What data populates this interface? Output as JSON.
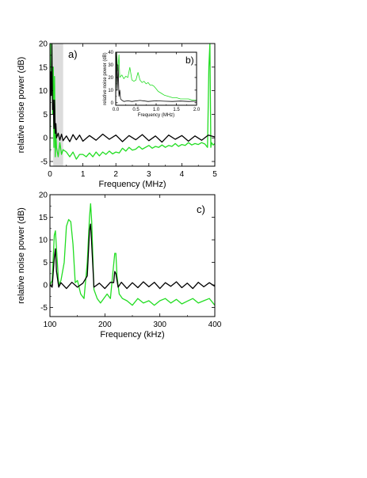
{
  "chart_data": [
    {
      "panel": "a)",
      "type": "line",
      "xlabel": "Frequency (MHz)",
      "ylabel": "relative noise power (dB)",
      "xlim": [
        0,
        5
      ],
      "ylim": [
        -6,
        20
      ],
      "xticks": [
        0,
        1,
        2,
        3,
        4,
        5
      ],
      "yticks": [
        -5,
        0,
        5,
        10,
        15,
        20
      ],
      "shaded_band": [
        0.1,
        0.4
      ],
      "grid": false,
      "series": [
        {
          "color": "#22dd22",
          "x": [
            0.0,
            0.02,
            0.04,
            0.06,
            0.08,
            0.1,
            0.12,
            0.14,
            0.16,
            0.18,
            0.2,
            0.25,
            0.3,
            0.35,
            0.4,
            0.5,
            0.6,
            0.7,
            0.8,
            0.9,
            1.0,
            1.1,
            1.2,
            1.3,
            1.4,
            1.5,
            1.6,
            1.7,
            1.8,
            1.9,
            2.0,
            2.1,
            2.2,
            2.3,
            2.4,
            2.5,
            2.6,
            2.7,
            2.8,
            2.9,
            3.0,
            3.1,
            3.2,
            3.3,
            3.4,
            3.5,
            3.6,
            3.7,
            3.8,
            3.9,
            4.0,
            4.1,
            4.2,
            4.3,
            4.4,
            4.5,
            4.6,
            4.7,
            4.78,
            4.82,
            4.85,
            4.88,
            4.9,
            4.95,
            5.0
          ],
          "y": [
            -3,
            20,
            20,
            20,
            5,
            15,
            -2,
            13,
            -4,
            1,
            -2,
            -4,
            -1,
            -3.5,
            -2.5,
            -3,
            -4,
            -3,
            -4.5,
            -3.5,
            -3.5,
            -4,
            -3.2,
            -4,
            -3,
            -3.8,
            -3,
            -3.5,
            -2.8,
            -3.4,
            -3,
            -3.2,
            -2.2,
            -2.8,
            -2,
            -2.6,
            -2.4,
            -1.8,
            -2.4,
            -2,
            -1.6,
            -2.2,
            -1.8,
            -2,
            -1.5,
            -2,
            -1.6,
            -1.8,
            -1.2,
            -1.8,
            -1.4,
            -1.6,
            -1,
            -1.5,
            -1.2,
            -1.4,
            -1,
            -1.3,
            -2,
            15,
            20,
            -2,
            -1,
            -1.5,
            -1.2
          ]
        },
        {
          "color": "#000000",
          "x": [
            0.0,
            0.02,
            0.04,
            0.06,
            0.08,
            0.1,
            0.12,
            0.14,
            0.16,
            0.18,
            0.2,
            0.25,
            0.3,
            0.35,
            0.4,
            0.5,
            0.6,
            0.7,
            0.8,
            0.9,
            1.0,
            1.2,
            1.4,
            1.6,
            1.8,
            2.0,
            2.2,
            2.4,
            2.6,
            2.8,
            3.0,
            3.2,
            3.4,
            3.6,
            3.8,
            4.0,
            4.2,
            4.4,
            4.6,
            4.8,
            5.0
          ],
          "y": [
            0,
            14,
            9,
            20,
            6,
            8,
            2,
            8,
            1,
            3,
            0,
            1,
            -0.5,
            0.8,
            -0.6,
            0.4,
            -0.8,
            0.7,
            -0.4,
            0.6,
            -0.7,
            0.5,
            -0.5,
            0.8,
            -0.3,
            0.6,
            -0.8,
            0.5,
            -0.4,
            0.7,
            -0.6,
            0.4,
            -0.9,
            0.6,
            -0.3,
            0.5,
            -0.7,
            0.4,
            -0.5,
            0.6,
            0.2
          ]
        }
      ]
    },
    {
      "panel": "b)",
      "type": "line",
      "xlabel": "Frequency (MHz)",
      "ylabel": "relative noise power (dB)",
      "xlim": [
        0,
        2
      ],
      "ylim": [
        -2,
        40
      ],
      "xticks": [
        0.0,
        0.5,
        1.0,
        1.5,
        2.0
      ],
      "xtick_labels": [
        "0.0",
        "0.5",
        "1.0",
        "1.5",
        "2.0"
      ],
      "yticks": [
        0,
        10,
        20,
        30,
        40
      ],
      "grid": false,
      "series": [
        {
          "color": "#22dd22",
          "x": [
            0.0,
            0.02,
            0.05,
            0.08,
            0.1,
            0.15,
            0.2,
            0.25,
            0.3,
            0.35,
            0.4,
            0.45,
            0.5,
            0.55,
            0.6,
            0.65,
            0.7,
            0.75,
            0.8,
            0.85,
            0.9,
            0.95,
            1.0,
            1.05,
            1.1,
            1.15,
            1.2,
            1.3,
            1.4,
            1.5,
            1.6,
            1.7,
            1.8,
            1.9,
            2.0
          ],
          "y": [
            5,
            40,
            25,
            38,
            20,
            22,
            19,
            21,
            20,
            28,
            18,
            17,
            18,
            24,
            18,
            16,
            17,
            15,
            16,
            14,
            14,
            13,
            11,
            9,
            8,
            7,
            6,
            5,
            4,
            4,
            3,
            3,
            3,
            2,
            2
          ]
        },
        {
          "color": "#000000",
          "x": [
            0.0,
            0.02,
            0.04,
            0.06,
            0.08,
            0.1,
            0.12,
            0.15,
            0.2,
            0.3,
            0.4,
            0.6,
            0.8,
            1.0,
            1.2,
            1.4,
            1.6,
            1.8,
            2.0
          ],
          "y": [
            2,
            40,
            10,
            30,
            5,
            10,
            3,
            2,
            1,
            1.5,
            1,
            1.8,
            1,
            1.5,
            1.2,
            1,
            1.3,
            1,
            1.2
          ]
        }
      ]
    },
    {
      "panel": "c)",
      "type": "line",
      "xlabel": "Frequency (kHz)",
      "ylabel": "relative noise power (dB)",
      "xlim": [
        100,
        400
      ],
      "ylim": [
        -7,
        20
      ],
      "xticks": [
        100,
        200,
        300,
        400
      ],
      "yticks": [
        -5,
        0,
        5,
        10,
        15,
        20
      ],
      "grid": false,
      "series": [
        {
          "color": "#22dd22",
          "x": [
            100,
            104,
            108,
            110,
            112,
            116,
            120,
            126,
            130,
            134,
            138,
            142,
            146,
            150,
            156,
            162,
            168,
            172,
            174,
            176,
            180,
            186,
            192,
            198,
            204,
            210,
            214,
            218,
            220,
            222,
            226,
            232,
            240,
            250,
            260,
            270,
            280,
            290,
            300,
            310,
            320,
            330,
            340,
            350,
            360,
            370,
            380,
            390,
            400
          ],
          "y": [
            0,
            1,
            11,
            12,
            8,
            0,
            1,
            5,
            13,
            14.5,
            14,
            9,
            0.5,
            1,
            -2,
            -3,
            5,
            15,
            18,
            14,
            -1,
            -3,
            -4,
            -3,
            -2,
            -3,
            2,
            7,
            7,
            2,
            -2,
            -3,
            -3.5,
            -4.5,
            -3,
            -4,
            -3.5,
            -4.5,
            -3.5,
            -3,
            -4,
            -3.2,
            -4.2,
            -3.6,
            -3,
            -4,
            -3.5,
            -3,
            -4.5
          ]
        },
        {
          "color": "#000000",
          "x": [
            100,
            104,
            108,
            110,
            112,
            116,
            120,
            130,
            140,
            150,
            160,
            168,
            172,
            174,
            176,
            180,
            190,
            200,
            210,
            216,
            218,
            220,
            224,
            230,
            240,
            250,
            260,
            270,
            280,
            290,
            300,
            310,
            320,
            330,
            340,
            350,
            360,
            370,
            380,
            390,
            400
          ],
          "y": [
            0,
            -0.5,
            6,
            8,
            3,
            -0.5,
            0.5,
            -0.8,
            0.6,
            -0.5,
            0.4,
            2,
            12,
            13.5,
            9,
            -0.5,
            0.4,
            -0.8,
            0.6,
            0.5,
            3,
            2.5,
            -0.5,
            0.6,
            -0.8,
            0.5,
            -0.6,
            0.7,
            -0.4,
            0.6,
            -0.8,
            0.5,
            -0.3,
            0.7,
            -0.6,
            0.4,
            -0.8,
            0.6,
            -0.4,
            0.5,
            -0.3
          ]
        }
      ]
    }
  ]
}
